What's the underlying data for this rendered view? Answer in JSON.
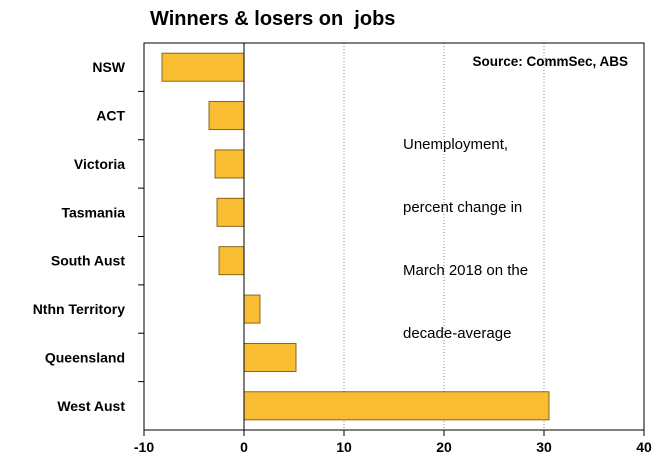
{
  "chart_data": {
    "type": "bar",
    "orientation": "horizontal",
    "title": "Winners & losers on  jobs",
    "source": "Source: CommSec, ABS",
    "annotation_lines": [
      "Unemployment,",
      "percent change in",
      "March 2018 on the",
      "decade-average"
    ],
    "categories": [
      "NSW",
      "ACT",
      "Victoria",
      "Tasmania",
      "South Aust",
      "Nthn Territory",
      "Queensland",
      "West Aust"
    ],
    "values": [
      -8.2,
      -3.5,
      -2.9,
      -2.7,
      -2.5,
      1.6,
      5.2,
      30.5
    ],
    "xlim": [
      -10,
      40
    ],
    "xticks": [
      -10,
      0,
      10,
      20,
      30,
      40
    ],
    "xtick_labels": [
      "-10",
      "0",
      "10",
      "20",
      "30",
      "40"
    ],
    "grid": true,
    "bar_color": "#F8BD33",
    "bar_edge_color": "#7A5A14"
  }
}
